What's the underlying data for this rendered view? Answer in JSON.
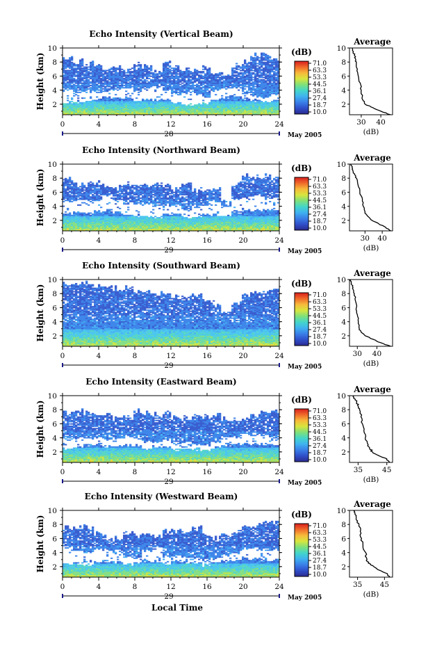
{
  "colors": {
    "colorbar_stops": [
      "#2b2a8f",
      "#2f4fc9",
      "#3a7fe8",
      "#3fb2f0",
      "#44d6c9",
      "#7fe07a",
      "#d8e53e",
      "#f7b93a",
      "#f06a2a",
      "#d81e1e"
    ]
  },
  "figure": {
    "x_axis_title": "Local Time",
    "date_label": "May 2005",
    "colorbar_unit": "(dB)",
    "colorbar_ticks": [
      "71.0",
      "63.3",
      "53.3",
      "44.5",
      "36.1",
      "27.4",
      "18.7",
      "10.0"
    ],
    "avg_title": "Average",
    "avg_unit": "(dB)"
  },
  "chart_data": [
    {
      "type": "heatmap",
      "title": "Echo Intensity (Vertical Beam)",
      "ylabel": "Height (km)",
      "day_label": "28",
      "xlim": [
        0,
        24
      ],
      "ylim": [
        0.5,
        10
      ],
      "xticks": [
        0,
        4,
        8,
        12,
        16,
        20,
        24
      ],
      "yticks": [
        2,
        4,
        6,
        8,
        10
      ],
      "upper_echo_top_km": [
        8.6,
        8.1,
        7.9,
        7.6,
        7.2,
        7.4,
        6.9,
        7.7,
        7.4,
        6.6,
        7.9,
        7.4,
        7.0,
        7.0,
        7.4,
        6.5,
        6.3,
        7.5,
        8.0,
        9.0,
        9.0,
        8.4
      ],
      "clear_gap_km": [
        [
          2.3,
          4.1
        ],
        [
          2.3,
          3.7
        ],
        [
          2.5,
          3.8
        ],
        [
          2.6,
          3.6
        ],
        [
          3.0,
          4.0
        ],
        [
          2.9,
          4.0
        ],
        [
          2.9,
          4.3
        ],
        [
          2.6,
          3.8
        ],
        [
          2.7,
          4.3
        ],
        [
          2.6,
          4.5
        ],
        [
          2.6,
          3.9
        ],
        [
          2.2,
          3.4
        ],
        [
          2.0,
          3.6
        ],
        [
          2.0,
          3.5
        ],
        [
          2.2,
          3.0
        ],
        [
          2.6,
          4.0
        ],
        [
          3.0,
          4.3
        ],
        [
          3.1,
          4.4
        ],
        [
          2.7,
          3.7
        ],
        [
          2.5,
          3.2
        ],
        [
          2.4,
          3.0
        ],
        [
          2.5,
          3.5
        ]
      ],
      "boundary_layer_top_km": 2.4,
      "profile": {
        "xlabel": "(dB)",
        "xlim": [
          24,
          46
        ],
        "xticks": [
          30,
          40
        ],
        "height_km": [
          0.5,
          1.0,
          1.5,
          2.0,
          2.5,
          3.0,
          4.0,
          5.0,
          6.0,
          7.0,
          8.0,
          8.5,
          9.0,
          9.5,
          10.0
        ],
        "db": [
          45,
          40,
          36,
          32,
          31,
          30.5,
          30,
          29.5,
          28.5,
          28,
          27.5,
          27,
          26.5,
          26,
          25.5
        ]
      }
    },
    {
      "type": "heatmap",
      "title": "Echo Intensity (Northward Beam)",
      "ylabel": "Height (km)",
      "day_label": "29",
      "xlim": [
        0,
        24
      ],
      "ylim": [
        0.5,
        10
      ],
      "xticks": [
        0,
        4,
        8,
        12,
        16,
        20,
        24
      ],
      "yticks": [
        2,
        4,
        6,
        8,
        10
      ],
      "upper_echo_top_km": [
        8.0,
        7.1,
        7.1,
        7.3,
        6.9,
        6.8,
        7.2,
        7.2,
        7.1,
        7.1,
        7.2,
        6.5,
        7.1,
        6.4,
        6.4,
        6.7,
        4.6,
        7.3,
        8.4,
        8.3,
        8.3,
        8.1
      ],
      "clear_gap_km": [
        [
          2.9,
          4.7
        ],
        [
          3.1,
          4.8
        ],
        [
          3.0,
          4.8
        ],
        [
          3.3,
          4.7
        ],
        [
          3.4,
          5.6
        ],
        [
          3.1,
          4.9
        ],
        [
          2.8,
          4.5
        ],
        [
          2.6,
          4.3
        ],
        [
          2.6,
          4.3
        ],
        [
          2.5,
          4.0
        ],
        [
          2.9,
          4.2
        ],
        [
          2.9,
          4.1
        ],
        [
          2.4,
          3.5
        ],
        [
          2.6,
          4.0
        ],
        [
          2.8,
          4.2
        ],
        [
          2.8,
          4.8
        ],
        [
          2.7,
          4.0
        ],
        [
          3.2,
          5.0
        ],
        [
          3.5,
          5.3
        ],
        [
          3.4,
          5.5
        ],
        [
          3.5,
          5.3
        ],
        [
          3.5,
          5.1
        ]
      ],
      "boundary_layer_top_km": 2.7,
      "profile": {
        "xlabel": "(dB)",
        "xlim": [
          21,
          46
        ],
        "xticks": [
          30,
          40
        ],
        "height_km": [
          0.5,
          1.0,
          1.5,
          2.0,
          2.5,
          3.0,
          4.0,
          5.0,
          6.0,
          7.0,
          8.0,
          8.5,
          9.0,
          9.5,
          10.0
        ],
        "db": [
          45,
          42,
          38,
          34,
          32,
          30,
          29,
          28.5,
          27,
          26,
          25,
          24,
          23,
          22.5,
          22
        ]
      }
    },
    {
      "type": "heatmap",
      "title": "Echo Intensity (Southward Beam)",
      "ylabel": "Height (km)",
      "day_label": "29",
      "xlim": [
        0,
        24
      ],
      "ylim": [
        0.5,
        10
      ],
      "xticks": [
        0,
        4,
        8,
        12,
        16,
        20,
        24
      ],
      "yticks": [
        2,
        4,
        6,
        8,
        10
      ],
      "upper_echo_top_km": [
        9.4,
        9.5,
        9.4,
        9.0,
        8.8,
        8.8,
        9.0,
        8.2,
        8.2,
        8.0,
        7.8,
        7.5,
        7.4,
        7.7,
        6.9,
        6.6,
        5.1,
        6.7,
        7.8,
        8.2,
        8.4,
        8.7
      ],
      "clear_gap_km": [],
      "boundary_layer_top_km": 2.9,
      "profile": {
        "xlabel": "(dB)",
        "xlim": [
          26,
          48
        ],
        "xticks": [
          30,
          40
        ],
        "height_km": [
          0.5,
          1.0,
          1.5,
          2.0,
          2.5,
          3.0,
          4.0,
          5.0,
          6.0,
          7.0,
          8.0,
          8.5,
          9.0,
          9.5,
          10.0
        ],
        "db": [
          47,
          42,
          38,
          34,
          32,
          31,
          30.5,
          30,
          29.5,
          29,
          28.5,
          28,
          27.5,
          27,
          26.5
        ]
      }
    },
    {
      "type": "heatmap",
      "title": "Echo Intensity (Eastward Beam)",
      "ylabel": "Height (km)",
      "day_label": "29",
      "xlim": [
        0,
        24
      ],
      "ylim": [
        0.5,
        10
      ],
      "xticks": [
        0,
        4,
        8,
        12,
        16,
        20,
        24
      ],
      "yticks": [
        2,
        4,
        6,
        8,
        10
      ],
      "upper_echo_top_km": [
        7.6,
        7.8,
        7.4,
        7.2,
        7.3,
        6.7,
        6.9,
        7.8,
        7.6,
        7.4,
        7.4,
        6.8,
        6.8,
        7.2,
        7.0,
        7.2,
        6.7,
        6.6,
        6.7,
        7.1,
        7.6,
        7.7
      ],
      "clear_gap_km": [
        [
          2.5,
          3.9
        ],
        [
          2.7,
          4.0
        ],
        [
          3.0,
          3.9
        ],
        [
          3.1,
          4.1
        ],
        [
          2.8,
          3.9
        ],
        [
          2.8,
          4.0
        ],
        [
          3.0,
          4.2
        ],
        [
          2.9,
          4.0
        ],
        [
          2.5,
          3.5
        ],
        [
          2.7,
          3.4
        ],
        [
          2.7,
          3.6
        ],
        [
          2.3,
          3.3
        ],
        [
          2.6,
          3.4
        ],
        [
          2.3,
          3.0
        ],
        [
          2.3,
          3.0
        ],
        [
          2.6,
          3.4
        ],
        [
          2.9,
          3.9
        ],
        [
          3.0,
          4.1
        ],
        [
          3.2,
          4.4
        ],
        [
          3.1,
          4.4
        ],
        [
          3.2,
          4.3
        ],
        [
          3.0,
          4.0
        ]
      ],
      "boundary_layer_top_km": 2.6,
      "profile": {
        "xlabel": "(dB)",
        "xlim": [
          32,
          47
        ],
        "xticks": [
          35,
          45
        ],
        "height_km": [
          0.5,
          1.0,
          1.5,
          2.0,
          2.5,
          3.0,
          4.0,
          5.0,
          6.0,
          7.0,
          8.0,
          8.5,
          9.0,
          9.5,
          10.0
        ],
        "db": [
          46,
          45,
          42,
          40,
          39,
          38.5,
          37.5,
          37,
          36.5,
          36,
          35.5,
          35,
          34.5,
          34,
          33.5
        ]
      }
    },
    {
      "type": "heatmap",
      "title": "Echo Intensity (Westward Beam)",
      "ylabel": "Height (km)",
      "day_label": "29",
      "xlim": [
        0,
        24
      ],
      "ylim": [
        0.5,
        10
      ],
      "xticks": [
        0,
        4,
        8,
        12,
        16,
        20,
        24
      ],
      "yticks": [
        2,
        4,
        6,
        8,
        10
      ],
      "upper_echo_top_km": [
        7.5,
        7.6,
        7.7,
        6.8,
        6.2,
        6.0,
        6.8,
        6.4,
        6.8,
        6.4,
        7.0,
        7.2,
        7.0,
        7.4,
        6.6,
        6.1,
        6.5,
        7.0,
        7.8,
        7.9,
        8.3,
        8.3
      ],
      "clear_gap_km": [
        [
          2.4,
          4.8
        ],
        [
          2.5,
          4.4
        ],
        [
          2.3,
          4.0
        ],
        [
          2.7,
          4.5
        ],
        [
          2.8,
          4.4
        ],
        [
          2.6,
          3.9
        ],
        [
          2.4,
          3.4
        ],
        [
          2.5,
          3.2
        ],
        [
          2.7,
          4.3
        ],
        [
          2.7,
          4.6
        ],
        [
          2.5,
          3.5
        ],
        [
          2.8,
          3.4
        ],
        [
          2.6,
          3.3
        ],
        [
          2.5,
          3.2
        ],
        [
          2.2,
          3.0
        ],
        [
          2.7,
          3.2
        ],
        [
          2.8,
          3.6
        ],
        [
          2.9,
          4.1
        ],
        [
          3.2,
          4.5
        ],
        [
          3.1,
          4.5
        ],
        [
          2.9,
          4.3
        ],
        [
          3.0,
          4.4
        ]
      ],
      "boundary_layer_top_km": 2.5,
      "profile": {
        "xlabel": "(dB)",
        "xlim": [
          32,
          48
        ],
        "xticks": [
          35,
          45
        ],
        "height_km": [
          0.5,
          1.0,
          1.5,
          2.0,
          2.5,
          3.0,
          4.0,
          5.0,
          6.0,
          7.0,
          8.0,
          8.5,
          9.0,
          9.5,
          10.0
        ],
        "db": [
          47,
          46,
          43,
          41,
          39,
          38.5,
          38,
          37,
          36.5,
          36,
          35.5,
          35,
          34.5,
          34,
          33.5
        ]
      }
    }
  ]
}
